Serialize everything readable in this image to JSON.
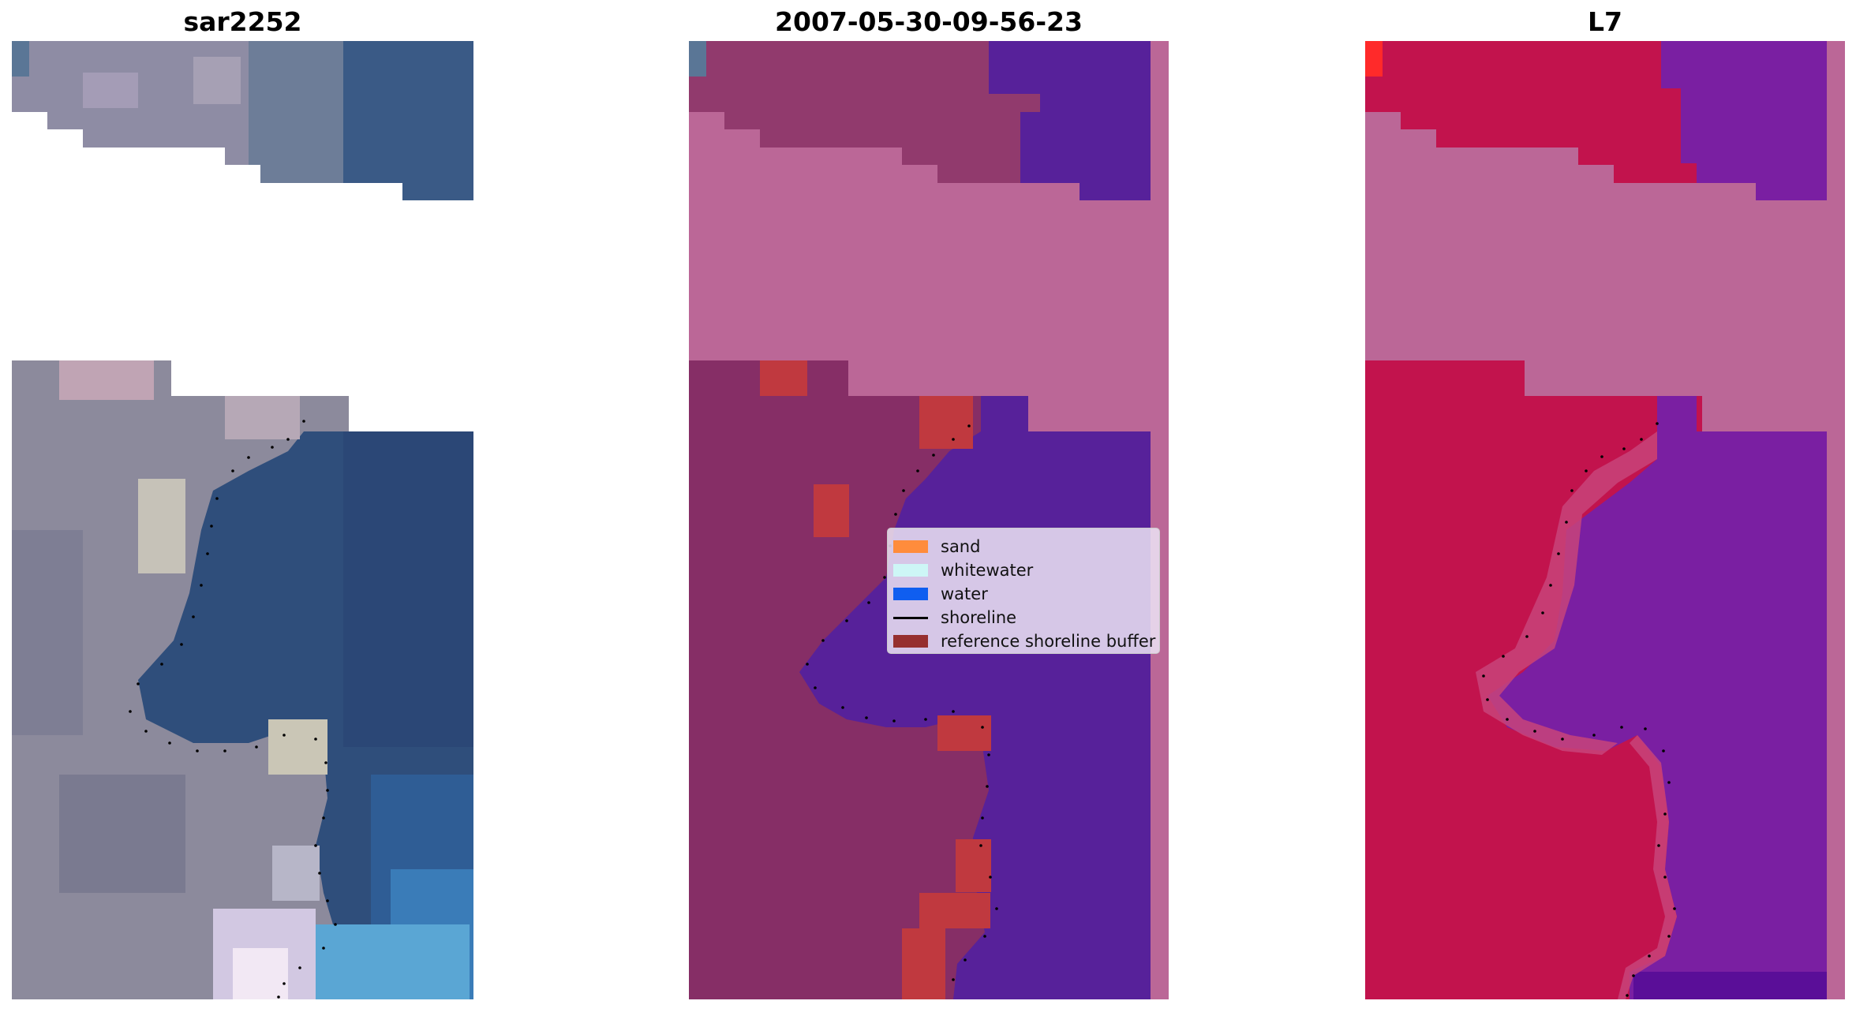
{
  "panels": [
    {
      "title": "sar2252"
    },
    {
      "title": "2007-05-30-09-56-23"
    },
    {
      "title": "L7"
    }
  ],
  "legend": {
    "items": [
      {
        "label": "sand",
        "kind": "patch",
        "color": "#ff8c3c"
      },
      {
        "label": "whitewater",
        "kind": "patch",
        "color": "#cdf6f6"
      },
      {
        "label": "water",
        "kind": "patch",
        "color": "#0f5ef0"
      },
      {
        "label": "shoreline",
        "kind": "line",
        "color": "#000000"
      },
      {
        "label": "reference shoreline buffer",
        "kind": "patch",
        "color": "#962f2f"
      }
    ]
  },
  "colors": {
    "rgb_land": "#8a8a9c",
    "rgb_water": "#2e4e78",
    "class_land": "#862e66",
    "class_water": "#57219a",
    "class_nodata": "#bb6797",
    "buffer": "#c0393f",
    "index_land": "#c2134d",
    "index_water": "#7a1fa2",
    "index_nodata": "#bb6797"
  }
}
